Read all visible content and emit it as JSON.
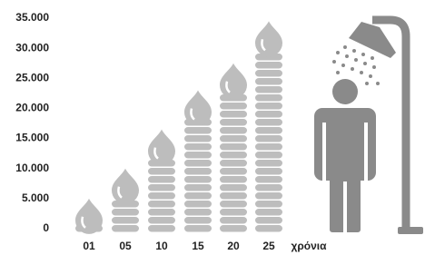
{
  "chart_data": {
    "type": "drop-stack",
    "x_label": "χρόνια",
    "categories": [
      "01",
      "05",
      "10",
      "15",
      "20",
      "25"
    ],
    "values": [
      5000,
      10000,
      16500,
      23000,
      27500,
      34500
    ],
    "color": "#bdbdbd",
    "ylim": [
      0,
      35000
    ],
    "yticks": [
      0,
      {
        "value": 5000,
        "label": "5.000"
      },
      {
        "value": 10000,
        "label": "10.000"
      },
      {
        "value": 15000,
        "label": "15.000"
      },
      {
        "value": 20000,
        "label": "20.000"
      },
      {
        "value": 25000,
        "label": "25.000"
      },
      {
        "value": 30000,
        "label": "30.000"
      },
      {
        "value": 35000,
        "label": "35.000"
      }
    ]
  }
}
